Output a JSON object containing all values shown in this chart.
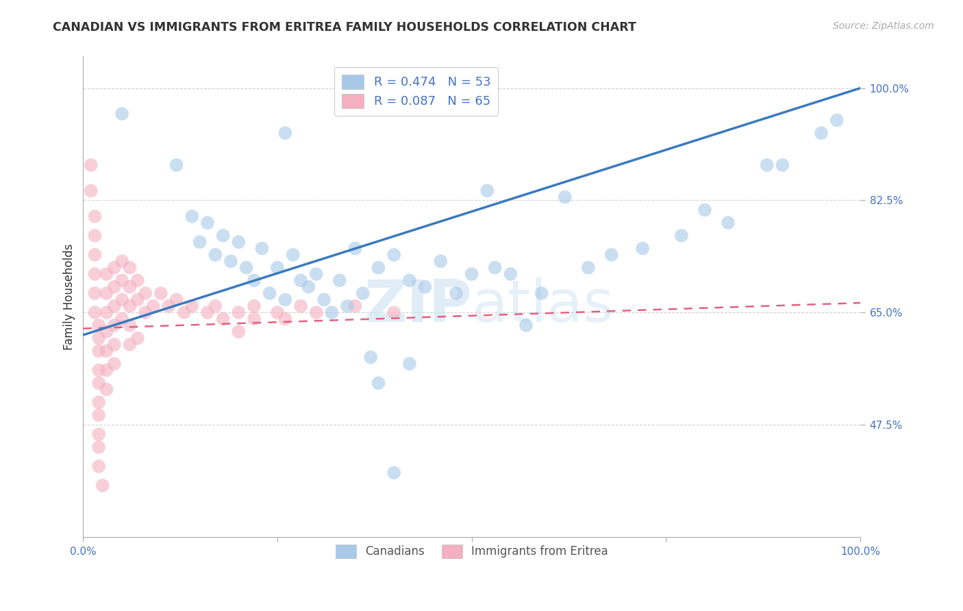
{
  "title": "CANADIAN VS IMMIGRANTS FROM ERITREA FAMILY HOUSEHOLDS CORRELATION CHART",
  "source_text": "Source: ZipAtlas.com",
  "xlabel": "",
  "ylabel": "Family Households",
  "watermark_zip": "ZIP",
  "watermark_atlas": "atlas",
  "legend_entries": [
    {
      "label": "R = 0.474   N = 53",
      "color": "#a8c8e8"
    },
    {
      "label": "R = 0.087   N = 65",
      "color": "#f4b8c8"
    }
  ],
  "legend_labels_bottom": [
    "Canadians",
    "Immigrants from Eritrea"
  ],
  "xlim": [
    0.0,
    1.0
  ],
  "ylim": [
    0.3,
    1.05
  ],
  "yticks": [
    0.475,
    0.65,
    0.825,
    1.0
  ],
  "ytick_labels": [
    "47.5%",
    "65.0%",
    "82.5%",
    "100.0%"
  ],
  "xticks": [
    0.0,
    0.25,
    0.5,
    0.75,
    1.0
  ],
  "xtick_labels": [
    "0.0%",
    "",
    "",
    "",
    "100.0%"
  ],
  "blue_scatter": [
    [
      0.05,
      0.96
    ],
    [
      0.12,
      0.88
    ],
    [
      0.14,
      0.8
    ],
    [
      0.15,
      0.76
    ],
    [
      0.16,
      0.79
    ],
    [
      0.17,
      0.74
    ],
    [
      0.18,
      0.77
    ],
    [
      0.19,
      0.73
    ],
    [
      0.2,
      0.76
    ],
    [
      0.21,
      0.72
    ],
    [
      0.22,
      0.7
    ],
    [
      0.23,
      0.75
    ],
    [
      0.24,
      0.68
    ],
    [
      0.25,
      0.72
    ],
    [
      0.26,
      0.67
    ],
    [
      0.27,
      0.74
    ],
    [
      0.28,
      0.7
    ],
    [
      0.29,
      0.69
    ],
    [
      0.3,
      0.71
    ],
    [
      0.31,
      0.67
    ],
    [
      0.32,
      0.65
    ],
    [
      0.33,
      0.7
    ],
    [
      0.34,
      0.66
    ],
    [
      0.35,
      0.75
    ],
    [
      0.36,
      0.68
    ],
    [
      0.38,
      0.72
    ],
    [
      0.4,
      0.74
    ],
    [
      0.42,
      0.7
    ],
    [
      0.44,
      0.69
    ],
    [
      0.46,
      0.73
    ],
    [
      0.48,
      0.68
    ],
    [
      0.5,
      0.71
    ],
    [
      0.52,
      0.84
    ],
    [
      0.53,
      0.72
    ],
    [
      0.55,
      0.71
    ],
    [
      0.57,
      0.63
    ],
    [
      0.59,
      0.68
    ],
    [
      0.62,
      0.83
    ],
    [
      0.65,
      0.72
    ],
    [
      0.68,
      0.74
    ],
    [
      0.72,
      0.75
    ],
    [
      0.77,
      0.77
    ],
    [
      0.8,
      0.81
    ],
    [
      0.83,
      0.79
    ],
    [
      0.88,
      0.88
    ],
    [
      0.9,
      0.88
    ],
    [
      0.95,
      0.93
    ],
    [
      0.97,
      0.95
    ],
    [
      0.26,
      0.93
    ],
    [
      0.4,
      0.4
    ],
    [
      0.37,
      0.58
    ],
    [
      0.42,
      0.57
    ],
    [
      0.38,
      0.54
    ]
  ],
  "pink_scatter": [
    [
      0.01,
      0.88
    ],
    [
      0.01,
      0.84
    ],
    [
      0.015,
      0.8
    ],
    [
      0.015,
      0.77
    ],
    [
      0.015,
      0.74
    ],
    [
      0.015,
      0.71
    ],
    [
      0.015,
      0.68
    ],
    [
      0.015,
      0.65
    ],
    [
      0.02,
      0.63
    ],
    [
      0.02,
      0.61
    ],
    [
      0.02,
      0.59
    ],
    [
      0.02,
      0.56
    ],
    [
      0.02,
      0.54
    ],
    [
      0.02,
      0.51
    ],
    [
      0.02,
      0.49
    ],
    [
      0.02,
      0.46
    ],
    [
      0.02,
      0.44
    ],
    [
      0.02,
      0.41
    ],
    [
      0.025,
      0.38
    ],
    [
      0.03,
      0.71
    ],
    [
      0.03,
      0.68
    ],
    [
      0.03,
      0.65
    ],
    [
      0.03,
      0.62
    ],
    [
      0.03,
      0.59
    ],
    [
      0.03,
      0.56
    ],
    [
      0.03,
      0.53
    ],
    [
      0.04,
      0.72
    ],
    [
      0.04,
      0.69
    ],
    [
      0.04,
      0.66
    ],
    [
      0.04,
      0.63
    ],
    [
      0.04,
      0.6
    ],
    [
      0.04,
      0.57
    ],
    [
      0.05,
      0.73
    ],
    [
      0.05,
      0.7
    ],
    [
      0.05,
      0.67
    ],
    [
      0.05,
      0.64
    ],
    [
      0.06,
      0.72
    ],
    [
      0.06,
      0.69
    ],
    [
      0.06,
      0.66
    ],
    [
      0.06,
      0.63
    ],
    [
      0.07,
      0.7
    ],
    [
      0.07,
      0.67
    ],
    [
      0.08,
      0.68
    ],
    [
      0.08,
      0.65
    ],
    [
      0.09,
      0.66
    ],
    [
      0.1,
      0.68
    ],
    [
      0.11,
      0.66
    ],
    [
      0.12,
      0.67
    ],
    [
      0.13,
      0.65
    ],
    [
      0.14,
      0.66
    ],
    [
      0.16,
      0.65
    ],
    [
      0.17,
      0.66
    ],
    [
      0.2,
      0.65
    ],
    [
      0.22,
      0.66
    ],
    [
      0.25,
      0.65
    ],
    [
      0.28,
      0.66
    ],
    [
      0.3,
      0.65
    ],
    [
      0.35,
      0.66
    ],
    [
      0.4,
      0.65
    ],
    [
      0.18,
      0.64
    ],
    [
      0.22,
      0.64
    ],
    [
      0.26,
      0.64
    ],
    [
      0.2,
      0.62
    ],
    [
      0.06,
      0.6
    ],
    [
      0.07,
      0.61
    ]
  ],
  "blue_line": {
    "x": [
      0.0,
      1.0
    ],
    "y": [
      0.615,
      1.0
    ]
  },
  "pink_line": {
    "x": [
      0.0,
      1.0
    ],
    "y": [
      0.625,
      0.665
    ]
  },
  "blue_color": "#a8c8e8",
  "pink_color": "#f4b0c0",
  "blue_line_color": "#3a7abf",
  "pink_line_color": "#e06080",
  "title_color": "#333333",
  "tick_color": "#4472c4",
  "grid_color": "#d0d0d0",
  "background_color": "#ffffff",
  "title_fontsize": 12.5,
  "axis_label_fontsize": 12,
  "tick_fontsize": 11,
  "source_fontsize": 10
}
